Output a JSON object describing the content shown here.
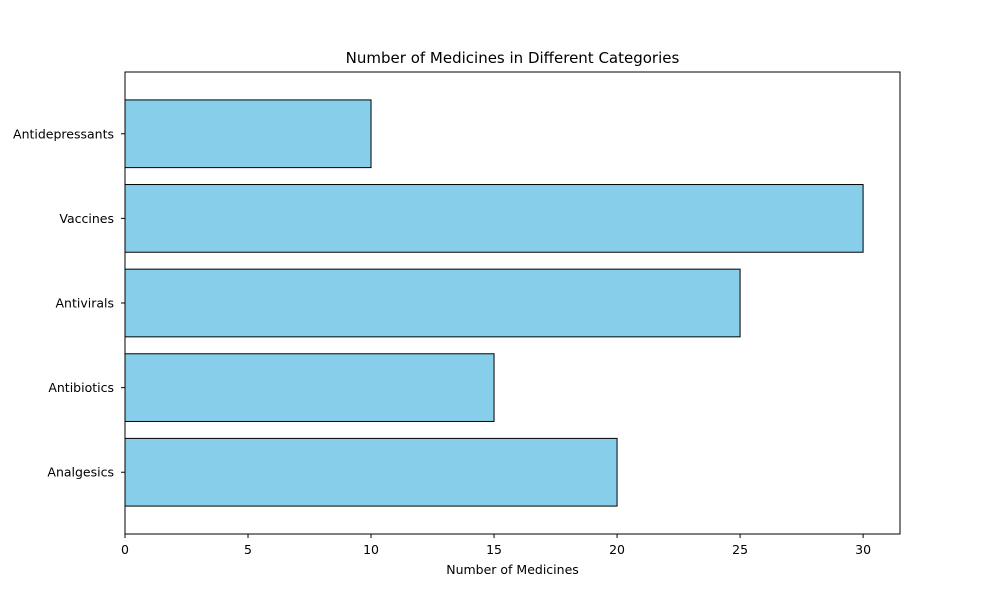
{
  "chart_data": {
    "type": "bar",
    "orientation": "horizontal",
    "title": "Number of Medicines in Different Categories",
    "xlabel": "Number of Medicines",
    "ylabel": "",
    "categories": [
      "Analgesics",
      "Antibiotics",
      "Antivirals",
      "Vaccines",
      "Antidepressants"
    ],
    "values": [
      20,
      15,
      25,
      30,
      10
    ],
    "xlim": [
      0,
      31.5
    ],
    "xticks": [
      0,
      5,
      10,
      15,
      20,
      25,
      30
    ],
    "grid": false,
    "legend": "none",
    "bar_color": "#87CEEB",
    "edge_color": "#000000"
  }
}
